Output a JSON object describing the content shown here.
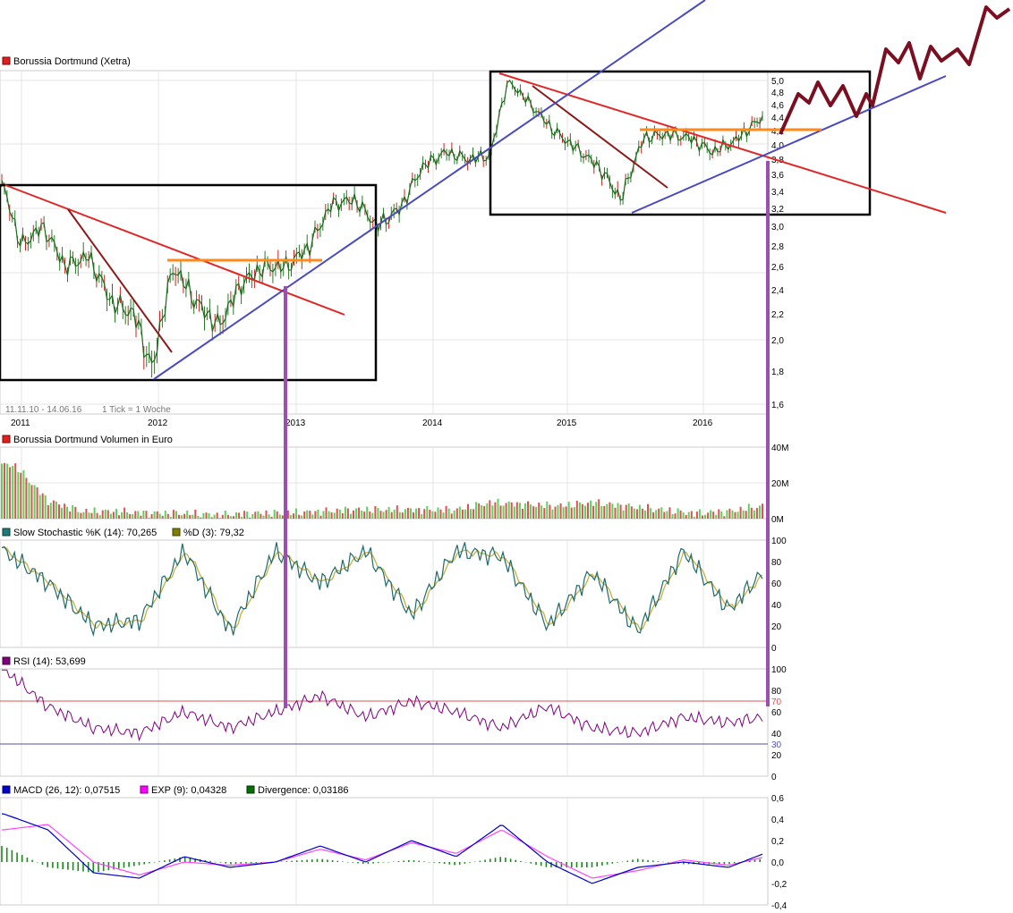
{
  "chart_data": [
    {
      "type": "line",
      "panel": "price",
      "title": "Borussia Dortmund (Xetra)",
      "legend_color": "#e02020",
      "date_range_label": "11.11.10 - 14.06.16",
      "tick_label": "1 Tick = 1 Woche",
      "x_tick_labels": [
        "2011",
        "2012",
        "2013",
        "2014",
        "2015",
        "2016"
      ],
      "y_tick_labels": [
        "1,6",
        "1,8",
        "2,0",
        "2,2",
        "2,4",
        "2,6",
        "2,8",
        "3,0",
        "3,2",
        "3,4",
        "3,6",
        "3,8",
        "4,0",
        "4,2",
        "4,4",
        "4,6",
        "4,8",
        "5,0"
      ],
      "ylim": [
        1.6,
        5.0
      ],
      "series": [
        {
          "x": [
            "2010-11-11",
            "2011-01-01",
            "2011-03-01",
            "2011-05-01",
            "2011-07-01",
            "2011-09-01",
            "2011-11-01",
            "2011-12-20",
            "2012-02-15",
            "2012-04-15",
            "2012-06-15",
            "2012-08-15",
            "2012-10-15",
            "2012-12-15",
            "2013-02-15",
            "2013-04-15",
            "2013-06-15",
            "2013-08-15",
            "2013-10-15",
            "2013-12-15",
            "2014-02-15",
            "2014-04-15",
            "2014-06-15",
            "2014-08-01",
            "2014-10-01",
            "2014-12-01",
            "2015-02-01",
            "2015-04-01",
            "2015-06-01",
            "2015-08-01",
            "2015-10-01",
            "2015-12-01",
            "2016-02-01",
            "2016-04-01",
            "2016-06-14"
          ],
          "y": [
            3.5,
            2.8,
            3.0,
            2.6,
            2.7,
            2.3,
            2.2,
            1.8,
            2.6,
            2.3,
            2.1,
            2.45,
            2.6,
            2.6,
            2.8,
            3.25,
            3.3,
            3.0,
            3.2,
            3.7,
            3.9,
            3.8,
            3.85,
            5.0,
            4.6,
            4.2,
            3.95,
            3.7,
            3.3,
            4.1,
            4.15,
            4.1,
            3.9,
            4.05,
            4.4
          ]
        }
      ]
    },
    {
      "type": "bar",
      "panel": "volume",
      "title": "Borussia Dortmund Volumen in Euro",
      "legend_color": "#e02020",
      "y_tick_labels": [
        "0M",
        "20M",
        "40M"
      ],
      "ylim": [
        0,
        40
      ],
      "series": [
        {
          "x": [
            "2010-12",
            "2011-03",
            "2011-06",
            "2011-09",
            "2011-12",
            "2012-03",
            "2012-06",
            "2012-09",
            "2012-12",
            "2013-03",
            "2013-06",
            "2013-09",
            "2013-12",
            "2014-03",
            "2014-06",
            "2014-09",
            "2014-12",
            "2015-03",
            "2015-06",
            "2015-09",
            "2015-12",
            "2016-03",
            "2016-06"
          ],
          "y": [
            30,
            10,
            4,
            4,
            3,
            3,
            2,
            3,
            3,
            4,
            5,
            5,
            5,
            5,
            9,
            8,
            7,
            9,
            7,
            5,
            3,
            4,
            7
          ]
        }
      ]
    },
    {
      "type": "line",
      "panel": "stochastic",
      "legend": [
        {
          "label": "Slow Stochastic %K (14): 70,265",
          "color": "#1f7a7a"
        },
        {
          "label": "%D (3): 79,32",
          "color": "#808000"
        }
      ],
      "y_tick_labels": [
        "0",
        "20",
        "40",
        "60",
        "80",
        "100"
      ],
      "ylim": [
        0,
        100
      ],
      "series": [
        {
          "name": "Slow Stochastic %K (14)",
          "x": [
            "2010-11",
            "2011-03",
            "2011-07",
            "2011-11",
            "2012-03",
            "2012-07",
            "2012-11",
            "2013-03",
            "2013-07",
            "2013-11",
            "2014-03",
            "2014-07",
            "2014-11",
            "2015-03",
            "2015-07",
            "2015-11",
            "2016-03",
            "2016-06"
          ],
          "y": [
            90,
            60,
            20,
            25,
            90,
            15,
            90,
            60,
            90,
            30,
            90,
            85,
            20,
            70,
            15,
            90,
            35,
            70
          ]
        }
      ]
    },
    {
      "type": "line",
      "panel": "rsi",
      "legend": [
        {
          "label": "RSI (14): 53,699",
          "color": "#800080"
        }
      ],
      "y_tick_labels": [
        "0",
        "20",
        "30",
        "40",
        "60",
        "70",
        "80",
        "100"
      ],
      "ylim": [
        0,
        100
      ],
      "reference_lines": [
        30,
        70
      ],
      "series": [
        {
          "name": "RSI (14)",
          "x": [
            "2010-11",
            "2011-03",
            "2011-07",
            "2011-11",
            "2012-03",
            "2012-07",
            "2012-11",
            "2013-03",
            "2013-07",
            "2013-11",
            "2014-03",
            "2014-07",
            "2014-11",
            "2015-03",
            "2015-07",
            "2015-11",
            "2016-03",
            "2016-06"
          ],
          "y": [
            100,
            65,
            45,
            40,
            60,
            45,
            60,
            75,
            55,
            70,
            60,
            45,
            65,
            45,
            40,
            55,
            50,
            55
          ]
        }
      ]
    },
    {
      "type": "line",
      "panel": "macd",
      "legend": [
        {
          "label": "MACD (26, 12): 0,07515",
          "color": "#0000cc"
        },
        {
          "label": "EXP (9): 0,04328",
          "color": "#ff00ff"
        },
        {
          "label": "Divergence: 0,03186",
          "color": "#007000"
        }
      ],
      "y_tick_labels": [
        "-0,4",
        "-0,2",
        "0,0",
        "0,2",
        "0,4",
        "0,6"
      ],
      "ylim": [
        -0.4,
        0.6
      ],
      "series": [
        {
          "name": "MACD (26, 12)",
          "x": [
            "2010-11",
            "2011-03",
            "2011-07",
            "2011-11",
            "2012-03",
            "2012-07",
            "2012-11",
            "2013-03",
            "2013-07",
            "2013-11",
            "2014-03",
            "2014-07",
            "2014-11",
            "2015-03",
            "2015-07",
            "2015-11",
            "2016-03",
            "2016-06"
          ],
          "y": [
            0.45,
            0.3,
            -0.1,
            -0.15,
            0.05,
            -0.05,
            0.0,
            0.15,
            0.0,
            0.2,
            0.05,
            0.35,
            0.0,
            -0.2,
            -0.05,
            0.0,
            -0.05,
            0.075
          ]
        },
        {
          "name": "EXP (9)",
          "x": [
            "2010-11",
            "2011-03",
            "2011-07",
            "2011-11",
            "2012-03",
            "2012-07",
            "2012-11",
            "2013-03",
            "2013-07",
            "2013-11",
            "2014-03",
            "2014-07",
            "2014-11",
            "2015-03",
            "2015-07",
            "2015-11",
            "2016-03",
            "2016-06"
          ],
          "y": [
            0.3,
            0.35,
            0.0,
            -0.12,
            0.0,
            -0.03,
            0.0,
            0.12,
            0.02,
            0.18,
            0.08,
            0.3,
            0.05,
            -0.15,
            -0.08,
            0.02,
            -0.03,
            0.043
          ]
        }
      ]
    }
  ]
}
